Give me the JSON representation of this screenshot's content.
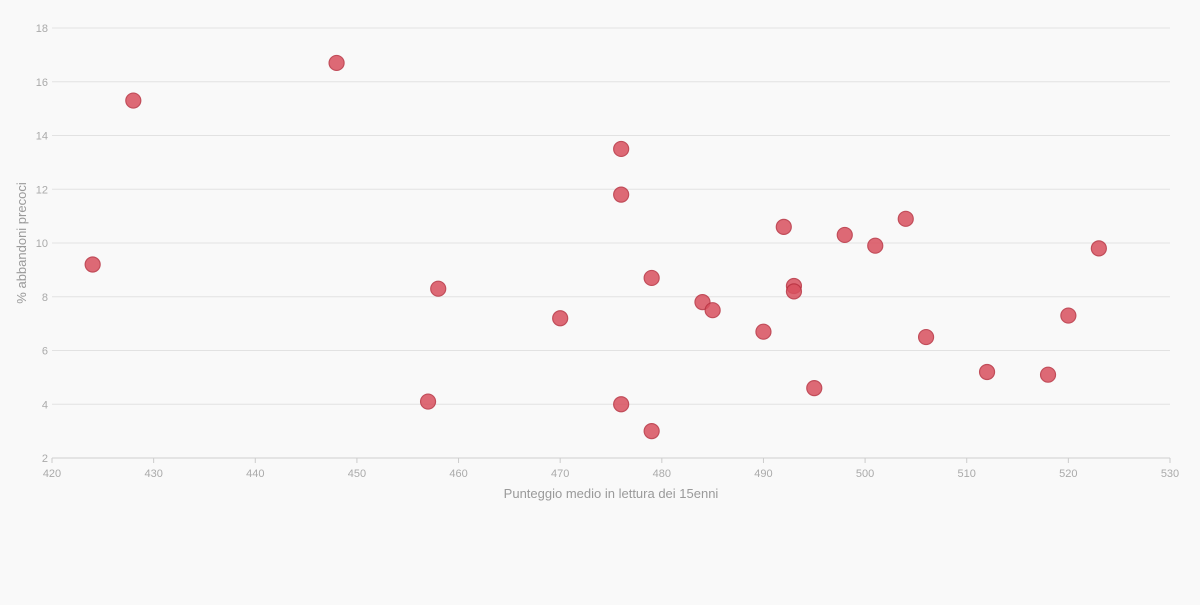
{
  "chart_data": {
    "type": "scatter",
    "title": "",
    "xlabel": "Punteggio medio in lettura dei 15enni",
    "ylabel": "% abbandoni precoci",
    "xlim": [
      420,
      530
    ],
    "ylim": [
      2,
      18
    ],
    "x_ticks": [
      420,
      430,
      440,
      450,
      460,
      470,
      480,
      490,
      500,
      510,
      520,
      530
    ],
    "y_ticks": [
      2,
      4,
      6,
      8,
      10,
      12,
      14,
      16,
      18
    ],
    "grid": true,
    "legend": "none",
    "colors": {
      "point_fill": "#d9505e",
      "point_stroke": "#b8303f"
    },
    "series": [
      {
        "points": [
          {
            "x": 424,
            "y": 9.2
          },
          {
            "x": 428,
            "y": 15.3
          },
          {
            "x": 448,
            "y": 16.7
          },
          {
            "x": 457,
            "y": 4.1
          },
          {
            "x": 458,
            "y": 8.3
          },
          {
            "x": 470,
            "y": 7.2
          },
          {
            "x": 476,
            "y": 13.5
          },
          {
            "x": 476,
            "y": 11.8
          },
          {
            "x": 476,
            "y": 4.0
          },
          {
            "x": 479,
            "y": 8.7
          },
          {
            "x": 479,
            "y": 3.0
          },
          {
            "x": 484,
            "y": 7.8
          },
          {
            "x": 485,
            "y": 7.5
          },
          {
            "x": 490,
            "y": 6.7
          },
          {
            "x": 492,
            "y": 10.6
          },
          {
            "x": 493,
            "y": 8.4
          },
          {
            "x": 493,
            "y": 8.2
          },
          {
            "x": 495,
            "y": 4.6
          },
          {
            "x": 498,
            "y": 10.3
          },
          {
            "x": 501,
            "y": 9.9
          },
          {
            "x": 504,
            "y": 10.9
          },
          {
            "x": 506,
            "y": 6.5
          },
          {
            "x": 512,
            "y": 5.2
          },
          {
            "x": 518,
            "y": 5.1
          },
          {
            "x": 520,
            "y": 7.3
          },
          {
            "x": 523,
            "y": 9.8
          }
        ]
      }
    ]
  }
}
